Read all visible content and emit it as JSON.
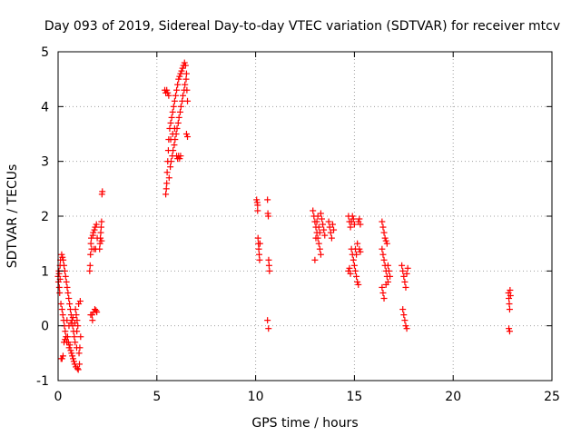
{
  "chart_data": {
    "type": "scatter",
    "title": "Day 093 of 2019, Sidereal Day-to-day VTEC variation (SDTVAR) for receiver mtcv",
    "xlabel": "GPS time / hours",
    "ylabel": "SDTVAR / TECUs",
    "xlim": [
      0,
      25
    ],
    "ylim": [
      -1,
      5
    ],
    "xticks": [
      0,
      5,
      10,
      15,
      20,
      25
    ],
    "yticks": [
      -1,
      0,
      1,
      2,
      3,
      4,
      5
    ],
    "grid": true,
    "marker": "plus",
    "color": "#ff0000",
    "series": [
      {
        "name": "SDTVAR",
        "points": [
          [
            0.0,
            0.9
          ],
          [
            0.02,
            0.8
          ],
          [
            0.04,
            1.0
          ],
          [
            0.06,
            0.7
          ],
          [
            0.08,
            0.6
          ],
          [
            0.1,
            1.1
          ],
          [
            0.12,
            1.2
          ],
          [
            0.14,
            0.4
          ],
          [
            0.15,
            -0.6
          ],
          [
            0.18,
            1.3
          ],
          [
            0.2,
            0.3
          ],
          [
            0.22,
            1.25
          ],
          [
            0.24,
            0.2
          ],
          [
            0.26,
            1.2
          ],
          [
            0.28,
            0.1
          ],
          [
            0.3,
            1.1
          ],
          [
            0.32,
            0.0
          ],
          [
            0.34,
            1.0
          ],
          [
            0.36,
            -0.1
          ],
          [
            0.38,
            0.9
          ],
          [
            0.4,
            -0.2
          ],
          [
            0.42,
            0.8
          ],
          [
            0.44,
            -0.3
          ],
          [
            0.46,
            0.7
          ],
          [
            0.48,
            -0.2
          ],
          [
            0.5,
            0.6
          ],
          [
            0.52,
            -0.3
          ],
          [
            0.54,
            0.5
          ],
          [
            0.56,
            -0.4
          ],
          [
            0.58,
            0.4
          ],
          [
            0.6,
            -0.35
          ],
          [
            0.62,
            0.3
          ],
          [
            0.64,
            -0.45
          ],
          [
            0.66,
            0.2
          ],
          [
            0.68,
            -0.5
          ],
          [
            0.7,
            0.1
          ],
          [
            0.72,
            -0.55
          ],
          [
            0.74,
            0.0
          ],
          [
            0.76,
            -0.6
          ],
          [
            0.78,
            -0.1
          ],
          [
            0.8,
            -0.65
          ],
          [
            0.82,
            -0.2
          ],
          [
            0.84,
            -0.7
          ],
          [
            0.86,
            -0.3
          ],
          [
            0.88,
            0.3
          ],
          [
            0.9,
            -0.75
          ],
          [
            0.92,
            0.2
          ],
          [
            0.94,
            -0.4
          ],
          [
            0.96,
            0.1
          ],
          [
            0.98,
            -0.78
          ],
          [
            1.0,
            0.0
          ],
          [
            1.02,
            -0.8
          ],
          [
            1.04,
            0.4
          ],
          [
            1.06,
            -0.5
          ],
          [
            1.08,
            -0.7
          ],
          [
            1.1,
            -0.4
          ],
          [
            1.12,
            0.45
          ],
          [
            1.14,
            -0.2
          ],
          [
            0.3,
            -0.3
          ],
          [
            0.25,
            -0.55
          ],
          [
            0.2,
            -0.6
          ],
          [
            0.35,
            -0.25
          ],
          [
            0.45,
            0.1
          ],
          [
            0.55,
            0.0
          ],
          [
            0.65,
            0.05
          ],
          [
            0.75,
            0.15
          ],
          [
            0.85,
            0.05
          ],
          [
            0.95,
            -0.1
          ],
          [
            0.05,
            0.95
          ],
          [
            0.1,
            0.85
          ],
          [
            1.6,
            1.0
          ],
          [
            1.62,
            1.1
          ],
          [
            1.64,
            1.3
          ],
          [
            1.66,
            1.5
          ],
          [
            1.68,
            1.6
          ],
          [
            1.7,
            1.4
          ],
          [
            1.72,
            0.2
          ],
          [
            1.74,
            0.1
          ],
          [
            1.76,
            1.65
          ],
          [
            1.78,
            1.7
          ],
          [
            1.8,
            0.25
          ],
          [
            1.82,
            1.4
          ],
          [
            1.84,
            1.75
          ],
          [
            1.86,
            0.3
          ],
          [
            1.88,
            1.8
          ],
          [
            1.9,
            1.4
          ],
          [
            1.92,
            0.28
          ],
          [
            1.94,
            1.85
          ],
          [
            1.96,
            0.25
          ],
          [
            1.98,
            1.6
          ],
          [
            2.1,
            1.4
          ],
          [
            2.12,
            1.5
          ],
          [
            2.14,
            1.6
          ],
          [
            2.16,
            1.7
          ],
          [
            2.18,
            1.8
          ],
          [
            2.2,
            1.9
          ],
          [
            2.22,
            2.4
          ],
          [
            2.24,
            2.45
          ],
          [
            2.2,
            1.55
          ],
          [
            1.65,
            0.2
          ],
          [
            5.4,
            4.3
          ],
          [
            5.45,
            4.25
          ],
          [
            5.5,
            4.3
          ],
          [
            5.55,
            4.25
          ],
          [
            5.6,
            4.2
          ],
          [
            5.45,
            2.4
          ],
          [
            5.48,
            2.5
          ],
          [
            5.5,
            2.6
          ],
          [
            5.52,
            2.8
          ],
          [
            5.55,
            3.0
          ],
          [
            5.58,
            3.2
          ],
          [
            5.6,
            3.4
          ],
          [
            5.62,
            2.7
          ],
          [
            5.65,
            3.6
          ],
          [
            5.68,
            2.9
          ],
          [
            5.7,
            3.7
          ],
          [
            5.72,
            3.0
          ],
          [
            5.75,
            3.8
          ],
          [
            5.78,
            3.1
          ],
          [
            5.8,
            3.9
          ],
          [
            5.82,
            3.2
          ],
          [
            5.85,
            4.0
          ],
          [
            5.88,
            3.3
          ],
          [
            5.9,
            4.1
          ],
          [
            5.92,
            3.4
          ],
          [
            5.95,
            4.2
          ],
          [
            5.98,
            3.5
          ],
          [
            6.0,
            4.3
          ],
          [
            6.02,
            3.6
          ],
          [
            6.05,
            4.4
          ],
          [
            6.08,
            3.7
          ],
          [
            6.1,
            4.5
          ],
          [
            6.12,
            3.8
          ],
          [
            6.15,
            4.55
          ],
          [
            6.18,
            3.9
          ],
          [
            6.2,
            4.6
          ],
          [
            6.22,
            4.0
          ],
          [
            6.25,
            4.65
          ],
          [
            6.28,
            4.1
          ],
          [
            6.3,
            4.7
          ],
          [
            6.32,
            4.2
          ],
          [
            6.35,
            4.75
          ],
          [
            6.38,
            4.3
          ],
          [
            6.4,
            4.8
          ],
          [
            6.42,
            4.4
          ],
          [
            6.45,
            4.75
          ],
          [
            6.48,
            4.5
          ],
          [
            6.5,
            4.6
          ],
          [
            6.52,
            4.3
          ],
          [
            6.55,
            4.1
          ],
          [
            6.0,
            3.1
          ],
          [
            6.05,
            3.05
          ],
          [
            6.1,
            3.1
          ],
          [
            6.15,
            3.05
          ],
          [
            6.2,
            3.1
          ],
          [
            6.5,
            3.5
          ],
          [
            6.55,
            3.45
          ],
          [
            5.7,
            3.4
          ],
          [
            5.8,
            3.5
          ],
          [
            5.9,
            3.6
          ],
          [
            10.05,
            2.3
          ],
          [
            10.08,
            2.25
          ],
          [
            10.1,
            2.2
          ],
          [
            10.12,
            1.6
          ],
          [
            10.14,
            1.5
          ],
          [
            10.16,
            1.4
          ],
          [
            10.18,
            1.3
          ],
          [
            10.2,
            1.2
          ],
          [
            10.22,
            1.5
          ],
          [
            10.1,
            2.1
          ],
          [
            10.6,
            2.3
          ],
          [
            10.62,
            2.05
          ],
          [
            10.64,
            2.0
          ],
          [
            10.66,
            1.2
          ],
          [
            10.68,
            1.1
          ],
          [
            10.7,
            1.0
          ],
          [
            10.6,
            0.1
          ],
          [
            10.65,
            -0.05
          ],
          [
            12.9,
            2.1
          ],
          [
            12.95,
            2.0
          ],
          [
            13.0,
            1.9
          ],
          [
            13.05,
            1.8
          ],
          [
            13.1,
            1.7
          ],
          [
            13.15,
            1.6
          ],
          [
            13.2,
            1.5
          ],
          [
            13.25,
            1.4
          ],
          [
            13.3,
            1.3
          ],
          [
            13.0,
            1.2
          ],
          [
            13.05,
            1.6
          ],
          [
            13.1,
            1.9
          ],
          [
            13.15,
            2.0
          ],
          [
            13.2,
            1.8
          ],
          [
            13.25,
            1.7
          ],
          [
            13.3,
            2.05
          ],
          [
            13.35,
            1.95
          ],
          [
            13.4,
            1.85
          ],
          [
            13.45,
            1.75
          ],
          [
            13.5,
            1.65
          ],
          [
            13.7,
            1.9
          ],
          [
            13.75,
            1.8
          ],
          [
            13.8,
            1.7
          ],
          [
            13.85,
            1.6
          ],
          [
            13.9,
            1.85
          ],
          [
            13.95,
            1.75
          ],
          [
            14.7,
            2.0
          ],
          [
            14.75,
            1.9
          ],
          [
            14.8,
            1.8
          ],
          [
            14.85,
            1.4
          ],
          [
            14.9,
            1.3
          ],
          [
            14.95,
            1.2
          ],
          [
            15.0,
            1.1
          ],
          [
            15.05,
            1.0
          ],
          [
            15.1,
            0.9
          ],
          [
            15.15,
            0.8
          ],
          [
            14.7,
            1.0
          ],
          [
            14.75,
            1.05
          ],
          [
            14.8,
            0.95
          ],
          [
            14.85,
            1.9
          ],
          [
            14.9,
            2.0
          ],
          [
            14.95,
            1.95
          ],
          [
            15.0,
            1.85
          ],
          [
            15.05,
            1.4
          ],
          [
            15.1,
            1.3
          ],
          [
            15.15,
            1.5
          ],
          [
            15.2,
            1.9
          ],
          [
            15.25,
            1.95
          ],
          [
            15.3,
            1.85
          ],
          [
            15.2,
            0.75
          ],
          [
            15.25,
            1.4
          ],
          [
            15.3,
            1.35
          ],
          [
            16.4,
            1.9
          ],
          [
            16.45,
            1.8
          ],
          [
            16.5,
            1.7
          ],
          [
            16.55,
            1.6
          ],
          [
            16.6,
            1.55
          ],
          [
            16.65,
            1.5
          ],
          [
            16.4,
            1.4
          ],
          [
            16.45,
            1.3
          ],
          [
            16.5,
            1.2
          ],
          [
            16.55,
            1.1
          ],
          [
            16.6,
            1.0
          ],
          [
            16.65,
            0.9
          ],
          [
            16.7,
            0.8
          ],
          [
            16.4,
            0.7
          ],
          [
            16.45,
            0.6
          ],
          [
            16.5,
            0.5
          ],
          [
            16.6,
            0.75
          ],
          [
            16.7,
            1.1
          ],
          [
            16.75,
            1.0
          ],
          [
            16.8,
            0.9
          ],
          [
            17.4,
            1.1
          ],
          [
            17.45,
            1.0
          ],
          [
            17.5,
            0.9
          ],
          [
            17.55,
            0.8
          ],
          [
            17.6,
            0.7
          ],
          [
            17.65,
            0.95
          ],
          [
            17.7,
            1.05
          ],
          [
            17.45,
            0.3
          ],
          [
            17.5,
            0.2
          ],
          [
            17.55,
            0.1
          ],
          [
            17.6,
            0.0
          ],
          [
            17.65,
            -0.05
          ],
          [
            22.8,
            0.6
          ],
          [
            22.82,
            0.5
          ],
          [
            22.84,
            0.4
          ],
          [
            22.86,
            0.3
          ],
          [
            22.88,
            0.65
          ],
          [
            22.9,
            0.55
          ],
          [
            22.82,
            -0.05
          ],
          [
            22.86,
            -0.1
          ]
        ]
      }
    ]
  }
}
